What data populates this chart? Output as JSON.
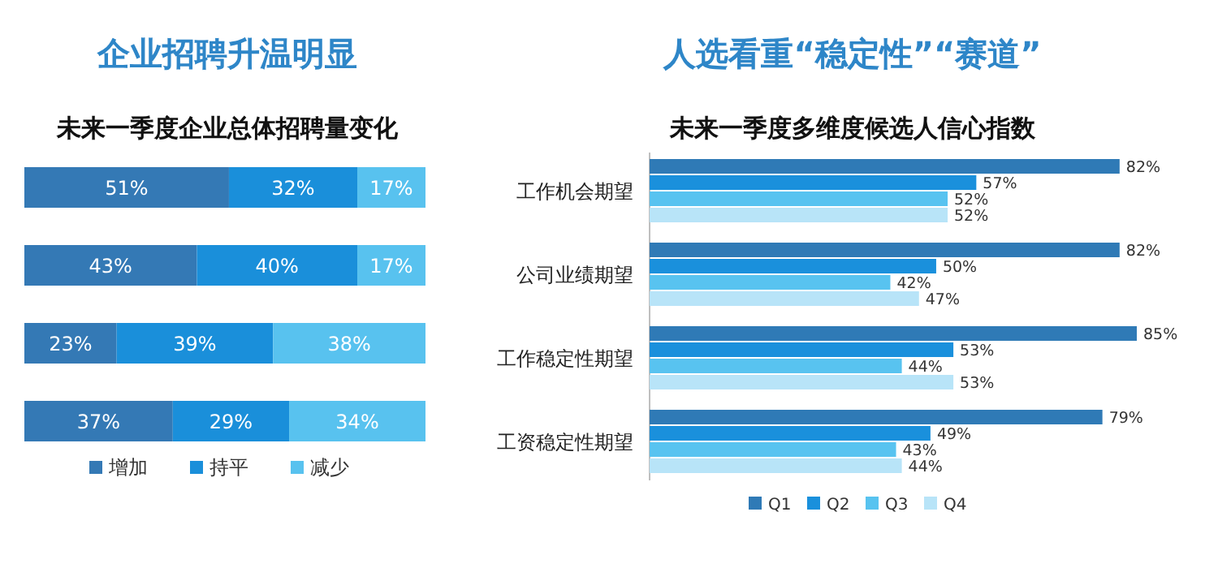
{
  "chart_data": [
    {
      "type": "bar",
      "title": "企业招聘升温明显",
      "subtitle": "未来一季度企业总体招聘量变化",
      "orientation": "horizontal",
      "stacked": true,
      "legend": "bottom",
      "categories": [
        null,
        null,
        null,
        null
      ],
      "series": [
        {
          "name": "增加",
          "color": "#3479b5",
          "values": [
            51,
            43,
            23,
            37
          ],
          "value_labels": [
            "51%",
            "43%",
            "23%",
            "37%"
          ]
        },
        {
          "name": "持平",
          "color": "#1a8fda",
          "values": [
            32,
            40,
            39,
            29
          ],
          "value_labels": [
            "32%",
            "40%",
            "39%",
            "29%"
          ]
        },
        {
          "name": "减少",
          "color": "#58c2ef",
          "values": [
            17,
            17,
            38,
            34
          ],
          "value_labels": [
            "17%",
            "17%",
            "38%",
            "34%"
          ]
        }
      ]
    },
    {
      "type": "bar",
      "title": "人选看重“稳定性”“赛道”",
      "subtitle": "未来一季度多维度候选人信心指数",
      "orientation": "horizontal",
      "legend": "bottom",
      "categories": [
        "工作机会期望",
        "公司业绩期望",
        "工作稳定性期望",
        "工资稳定性期望"
      ],
      "series": [
        {
          "name": "Q1",
          "color": "#2f7ab6",
          "values": [
            82,
            82,
            85,
            79
          ],
          "value_labels": [
            "82%",
            "82%",
            "85%",
            "79%"
          ]
        },
        {
          "name": "Q2",
          "color": "#1a90dc",
          "values": [
            57,
            50,
            53,
            49
          ],
          "value_labels": [
            "57%",
            "50%",
            "53%",
            "49%"
          ]
        },
        {
          "name": "Q3",
          "color": "#58c3f0",
          "values": [
            52,
            42,
            44,
            43
          ],
          "value_labels": [
            "52%",
            "42%",
            "44%",
            "43%"
          ]
        },
        {
          "name": "Q4",
          "color": "#b8e4f8",
          "values": [
            52,
            47,
            53,
            44
          ],
          "value_labels": [
            "52%",
            "47%",
            "53%",
            "44%"
          ]
        }
      ]
    }
  ]
}
